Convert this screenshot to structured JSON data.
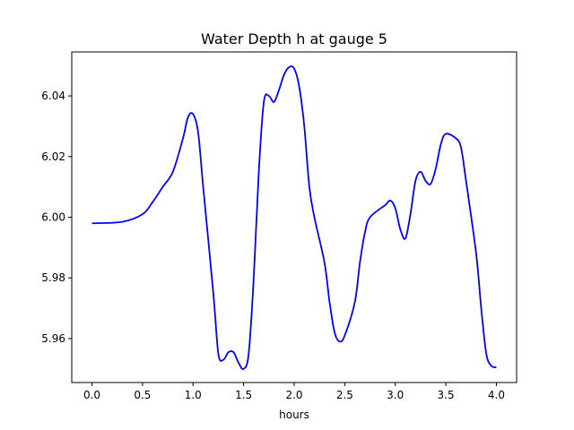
{
  "chart_data": {
    "type": "line",
    "title": "Water Depth h at gauge 5",
    "xlabel": "hours",
    "ylabel": "",
    "xlim": [
      -0.2,
      4.2
    ],
    "ylim": [
      5.9455,
      6.0545
    ],
    "grid": false,
    "xticks": [
      0.0,
      0.5,
      1.0,
      1.5,
      2.0,
      2.5,
      3.0,
      3.5,
      4.0
    ],
    "xtick_labels": [
      "0.0",
      "0.5",
      "1.0",
      "1.5",
      "2.0",
      "2.5",
      "3.0",
      "3.5",
      "4.0"
    ],
    "yticks": [
      5.96,
      5.98,
      6.0,
      6.02,
      6.04
    ],
    "ytick_labels": [
      "5.96",
      "5.98",
      "6.00",
      "6.02",
      "6.04"
    ],
    "series": [
      {
        "color": "#0000ff",
        "x": [
          0.0,
          0.3,
          0.5,
          0.6,
          0.7,
          0.8,
          0.9,
          0.95,
          1.0,
          1.05,
          1.1,
          1.2,
          1.25,
          1.3,
          1.35,
          1.4,
          1.45,
          1.5,
          1.55,
          1.6,
          1.65,
          1.7,
          1.75,
          1.8,
          1.85,
          1.9,
          1.95,
          2.0,
          2.05,
          2.1,
          2.15,
          2.2,
          2.3,
          2.35,
          2.4,
          2.45,
          2.5,
          2.6,
          2.65,
          2.7,
          2.75,
          2.9,
          2.95,
          3.0,
          3.05,
          3.1,
          3.15,
          3.2,
          3.25,
          3.3,
          3.35,
          3.4,
          3.45,
          3.5,
          3.6,
          3.65,
          3.7,
          3.8,
          3.85,
          3.9,
          3.95,
          4.0
        ],
        "values": [
          5.998,
          5.9985,
          6.001,
          6.005,
          6.01,
          6.015,
          6.026,
          6.033,
          6.034,
          6.028,
          6.01,
          5.975,
          5.955,
          5.953,
          5.9555,
          5.9555,
          5.952,
          5.95,
          5.955,
          5.98,
          6.015,
          6.038,
          6.04,
          6.038,
          6.042,
          6.047,
          6.0495,
          6.049,
          6.043,
          6.03,
          6.01,
          6.0,
          5.985,
          5.972,
          5.962,
          5.959,
          5.961,
          5.972,
          5.985,
          5.995,
          6.0,
          6.004,
          6.0055,
          6.003,
          5.996,
          5.993,
          6.001,
          6.012,
          6.015,
          6.012,
          6.011,
          6.016,
          6.024,
          6.0275,
          6.026,
          6.023,
          6.012,
          5.988,
          5.97,
          5.955,
          5.951,
          5.9505
        ]
      }
    ]
  }
}
